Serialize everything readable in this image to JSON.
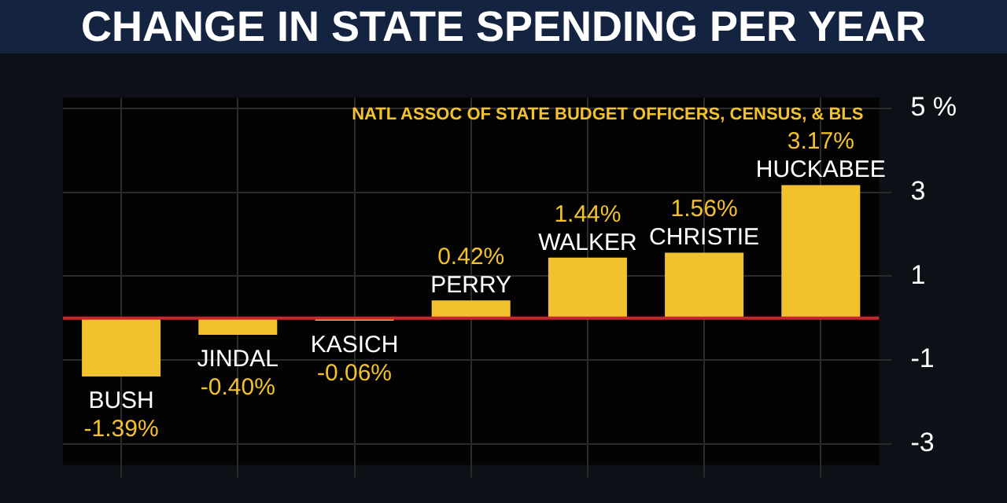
{
  "chart_data": {
    "type": "bar",
    "title": "CHANGE IN STATE SPENDING PER YEAR",
    "annotations": [
      "NATL ASSOC OF STATE BUDGET OFFICERS, CENSUS, & BLS"
    ],
    "categories": [
      "BUSH",
      "JINDAL",
      "KASICH",
      "PERRY",
      "WALKER",
      "CHRISTIE",
      "HUCKABEE"
    ],
    "values": [
      -1.39,
      -0.4,
      -0.06,
      0.42,
      1.44,
      1.56,
      3.17
    ],
    "value_labels": [
      "-1.39%",
      "-0.40%",
      "-0.06%",
      "0.42%",
      "1.44%",
      "1.56%",
      "3.17%"
    ],
    "color": "#f2c12e",
    "ylim": [
      -3.5,
      5.25
    ],
    "yticks": [
      {
        "value": 5,
        "label": "5 %"
      },
      3,
      1,
      -1,
      -3
    ],
    "ref_lines": [
      {
        "axis": "y",
        "value": 0,
        "color": "#c8282d"
      }
    ],
    "grid": true,
    "tick_labels": "y",
    "legend": false
  }
}
